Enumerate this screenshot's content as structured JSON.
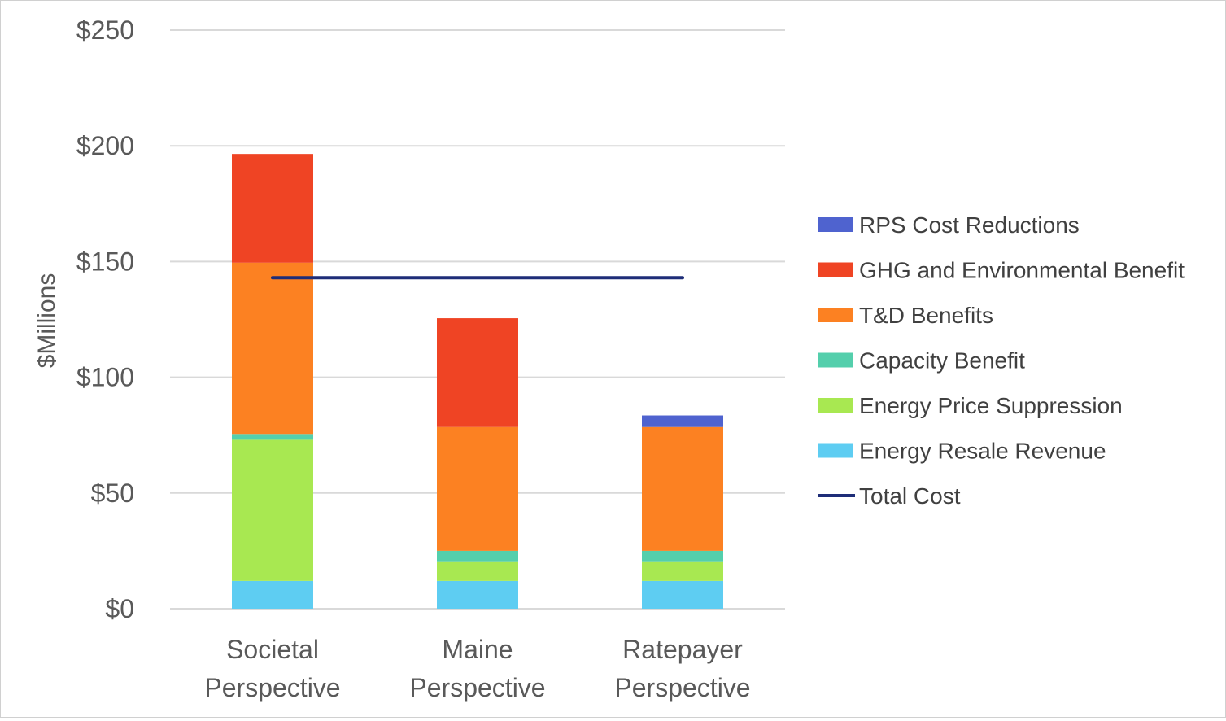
{
  "chart_data": {
    "type": "bar",
    "stacked": true,
    "title": "",
    "xlabel": "",
    "ylabel": "$Millions",
    "ylim": [
      0,
      250
    ],
    "yticks": [
      0,
      50,
      100,
      150,
      200,
      250
    ],
    "ytick_labels": [
      "$0",
      "$50",
      "$100",
      "$150",
      "$200",
      "$250"
    ],
    "grid": true,
    "legend_position": "right",
    "categories": [
      [
        "Societal",
        "Perspective"
      ],
      [
        "Maine",
        "Perspective"
      ],
      [
        "Ratepayer",
        "Perspective"
      ]
    ],
    "series": [
      {
        "name": "Energy Resale Revenue",
        "color": "#5ecdf2",
        "values": [
          12,
          12,
          12
        ]
      },
      {
        "name": "Energy Price Suppression",
        "color": "#a8e851",
        "values": [
          61,
          8.5,
          8.5
        ]
      },
      {
        "name": "Capacity Benefit",
        "color": "#54cfac",
        "values": [
          2.5,
          4.5,
          4.5
        ]
      },
      {
        "name": "T&D Benefits",
        "color": "#fc8122",
        "values": [
          74,
          53.5,
          53.5
        ]
      },
      {
        "name": "GHG and Environmental Benefit",
        "color": "#ef4424",
        "values": [
          47,
          47,
          0
        ]
      },
      {
        "name": "RPS Cost Reductions",
        "color": "#4f63cf",
        "values": [
          0,
          0,
          5
        ]
      }
    ],
    "line_series": {
      "name": "Total Cost",
      "color": "#1e2d78",
      "values": [
        143,
        143,
        143
      ]
    },
    "legend_order": [
      "RPS Cost Reductions",
      "GHG and Environmental Benefit",
      "T&D Benefits",
      "Capacity Benefit",
      "Energy Price Suppression",
      "Energy Resale Revenue",
      "Total Cost"
    ]
  }
}
